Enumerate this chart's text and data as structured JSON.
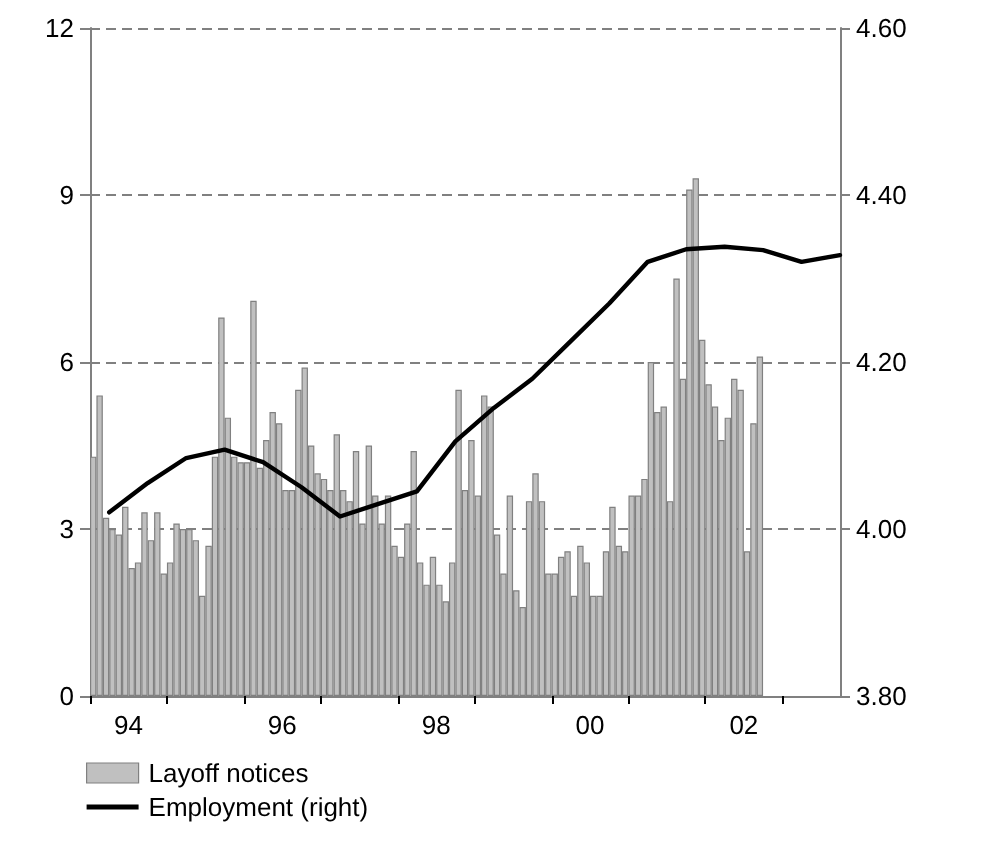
{
  "chart_data": {
    "type": "bar",
    "x": [
      "1994-01",
      "1994-02",
      "1994-03",
      "1994-04",
      "1994-05",
      "1994-06",
      "1994-07",
      "1994-08",
      "1994-09",
      "1994-10",
      "1994-11",
      "1994-12",
      "1995-01",
      "1995-02",
      "1995-03",
      "1995-04",
      "1995-05",
      "1995-06",
      "1995-07",
      "1995-08",
      "1995-09",
      "1995-10",
      "1995-11",
      "1995-12",
      "1996-01",
      "1996-02",
      "1996-03",
      "1996-04",
      "1996-05",
      "1996-06",
      "1996-07",
      "1996-08",
      "1996-09",
      "1996-10",
      "1996-11",
      "1996-12",
      "1997-01",
      "1997-02",
      "1997-03",
      "1997-04",
      "1997-05",
      "1997-06",
      "1997-07",
      "1997-08",
      "1997-09",
      "1997-10",
      "1997-11",
      "1997-12",
      "1998-01",
      "1998-02",
      "1998-03",
      "1998-04",
      "1998-05",
      "1998-06",
      "1998-07",
      "1998-08",
      "1998-09",
      "1998-10",
      "1998-11",
      "1998-12",
      "1999-01",
      "1999-02",
      "1999-03",
      "1999-04",
      "1999-05",
      "1999-06",
      "1999-07",
      "1999-08",
      "1999-09",
      "1999-10",
      "1999-11",
      "1999-12",
      "2000-01",
      "2000-02",
      "2000-03",
      "2000-04",
      "2000-05",
      "2000-06",
      "2000-07",
      "2000-08",
      "2000-09",
      "2000-10",
      "2000-11",
      "2000-12",
      "2001-01",
      "2001-02",
      "2001-03",
      "2001-04",
      "2001-05",
      "2001-06",
      "2001-07",
      "2001-08",
      "2001-09",
      "2001-10",
      "2001-11",
      "2001-12",
      "2002-01",
      "2002-02",
      "2002-03",
      "2002-04",
      "2002-05",
      "2002-06",
      "2002-07",
      "2002-08",
      "2002-09"
    ],
    "series": [
      {
        "name": "Layoff notices",
        "color": "#c0c0c0",
        "values": [
          4.3,
          5.4,
          3.2,
          3.0,
          2.9,
          3.4,
          2.3,
          2.4,
          3.3,
          2.8,
          3.3,
          2.2,
          2.4,
          3.1,
          3.0,
          3.0,
          2.8,
          1.8,
          2.7,
          4.3,
          6.8,
          5.0,
          4.3,
          4.2,
          4.2,
          7.1,
          4.1,
          4.6,
          5.1,
          4.9,
          3.7,
          3.7,
          5.5,
          5.9,
          4.5,
          4.0,
          3.9,
          3.7,
          4.7,
          3.7,
          3.5,
          4.4,
          3.1,
          4.5,
          3.6,
          3.1,
          3.6,
          2.7,
          2.5,
          3.1,
          4.4,
          2.4,
          2.0,
          2.5,
          2.0,
          1.7,
          2.4,
          5.5,
          3.7,
          4.6,
          3.6,
          5.4,
          5.2,
          2.9,
          2.2,
          3.6,
          1.9,
          1.6,
          3.5,
          4.0,
          3.5,
          2.2,
          2.2,
          2.5,
          2.6,
          1.8,
          2.7,
          2.4,
          1.8,
          1.8,
          2.6,
          3.4,
          2.7,
          2.6,
          3.6,
          3.6,
          3.9,
          6.0,
          5.1,
          5.2,
          3.5,
          7.5,
          5.7,
          9.1,
          9.3,
          6.4,
          5.6,
          5.2,
          4.6,
          5.0,
          5.7,
          5.5,
          2.6,
          4.9,
          6.1
        ]
      },
      {
        "name": "Employment (right)",
        "type": "line",
        "axis": "y2",
        "color": "#000000",
        "x": [
          "1994-04",
          "1994-10",
          "1995-04",
          "1995-10",
          "1996-04",
          "1996-10",
          "1997-04",
          "1997-10",
          "1998-04",
          "1998-10",
          "1999-04",
          "1999-10",
          "2000-04",
          "2000-10",
          "2001-04",
          "2001-10",
          "2002-04",
          "2002-10",
          "2003-04",
          "2003-10"
        ],
        "values": [
          4.02,
          4.055,
          4.085,
          4.095,
          4.08,
          4.05,
          4.015,
          4.03,
          4.045,
          4.105,
          4.145,
          4.18,
          4.225,
          4.27,
          4.32,
          4.335,
          4.338,
          4.334,
          4.32,
          4.328
        ]
      }
    ],
    "xlim": [
      "1994-01",
      "2003-10"
    ],
    "xticks": [
      {
        "value": "1994-01",
        "label": null
      },
      {
        "value": "1995-01",
        "label": null
      },
      {
        "value": "1996-01",
        "label": null
      },
      {
        "value": "1997-01",
        "label": null
      },
      {
        "value": "1998-01",
        "label": null
      },
      {
        "value": "1999-01",
        "label": null
      },
      {
        "value": "2000-01",
        "label": null
      },
      {
        "value": "2001-01",
        "label": null
      },
      {
        "value": "2002-01",
        "label": null
      },
      {
        "value": "2003-01",
        "label": null
      },
      {
        "value": "1994-07",
        "label": "94"
      },
      {
        "value": "1996-07",
        "label": "96"
      },
      {
        "value": "1998-07",
        "label": "98"
      },
      {
        "value": "2000-07",
        "label": "00"
      },
      {
        "value": "2002-07",
        "label": "02"
      }
    ],
    "ylim": [
      0,
      12
    ],
    "yticks": [
      0,
      3,
      6,
      9,
      12
    ],
    "y2lim": [
      3.8,
      4.6
    ],
    "y2ticks": [
      {
        "value": 3.8,
        "label": "3.80"
      },
      {
        "value": 4.0,
        "label": "4.00"
      },
      {
        "value": 4.2,
        "label": "4.20"
      },
      {
        "value": 4.4,
        "label": "4.40"
      },
      {
        "value": 4.6,
        "label": "4.60"
      }
    ],
    "grid": "y",
    "legend": "bottom left",
    "marker": "none",
    "line_style": "solid"
  }
}
